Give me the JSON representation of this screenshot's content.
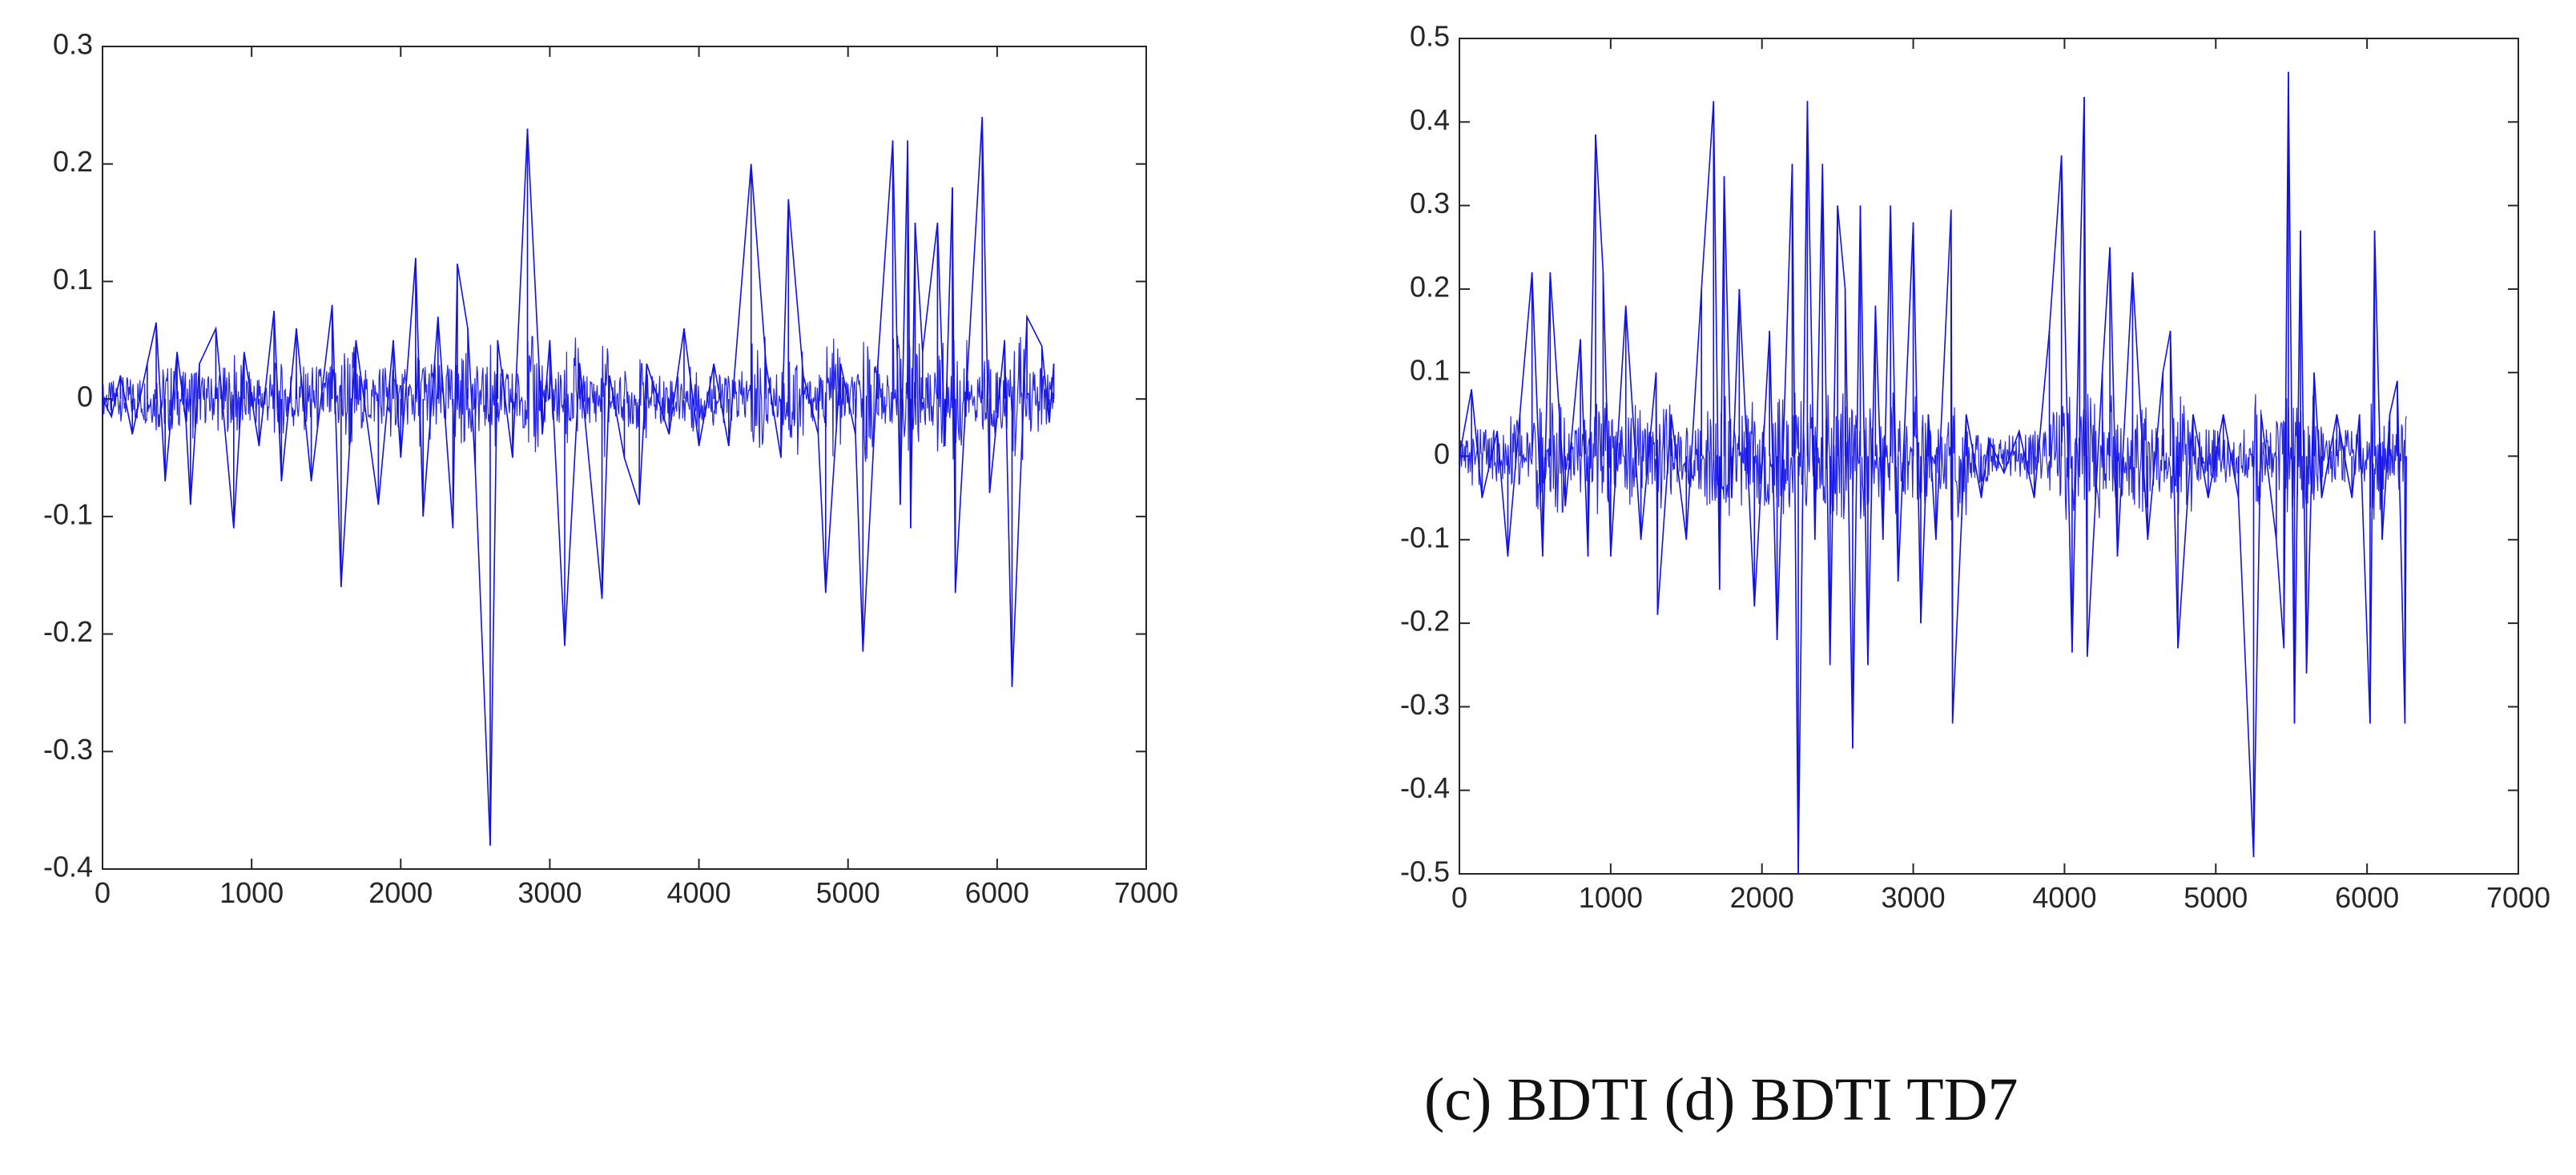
{
  "caption": "(c) BDTI (d) BDTI TD7",
  "colors": {
    "series": "#1010e8",
    "axis": "#262626",
    "background": "#ffffff"
  },
  "chart_data": [
    {
      "type": "line",
      "title": "",
      "xlabel": "",
      "ylabel": "",
      "xlim": [
        0,
        7000
      ],
      "ylim": [
        -0.4,
        0.3
      ],
      "xticks": [
        "0",
        "1000",
        "2000",
        "3000",
        "4000",
        "5000",
        "6000",
        "7000"
      ],
      "yticks": [
        "0.3",
        "0.2",
        "0.1",
        "0",
        "-0.1",
        "-0.2",
        "-0.3",
        "-0.4"
      ],
      "grid": false,
      "series": [
        {
          "points": [
            [
              0,
              0
            ],
            [
              60,
              -0.015
            ],
            [
              120,
              0.02
            ],
            [
              200,
              -0.03
            ],
            [
              300,
              0.03
            ],
            [
              360,
              0.065
            ],
            [
              420,
              -0.07
            ],
            [
              500,
              0.04
            ],
            [
              560,
              -0.02
            ],
            [
              590,
              -0.09
            ],
            [
              650,
              0.03
            ],
            [
              760,
              0.06
            ],
            [
              880,
              -0.11
            ],
            [
              950,
              0.04
            ],
            [
              1050,
              -0.04
            ],
            [
              1150,
              0.075
            ],
            [
              1200,
              -0.07
            ],
            [
              1300,
              0.06
            ],
            [
              1400,
              -0.07
            ],
            [
              1540,
              0.08
            ],
            [
              1600,
              -0.16
            ],
            [
              1700,
              0.05
            ],
            [
              1850,
              -0.09
            ],
            [
              1950,
              0.05
            ],
            [
              2000,
              -0.05
            ],
            [
              2100,
              0.12
            ],
            [
              2150,
              -0.1
            ],
            [
              2250,
              0.07
            ],
            [
              2350,
              -0.11
            ],
            [
              2380,
              0.115
            ],
            [
              2450,
              0.06
            ],
            [
              2500,
              -0.06
            ],
            [
              2600,
              -0.38
            ],
            [
              2650,
              0.05
            ],
            [
              2750,
              -0.05
            ],
            [
              2850,
              0.23
            ],
            [
              2950,
              -0.03
            ],
            [
              3000,
              0.05
            ],
            [
              3100,
              -0.21
            ],
            [
              3200,
              0.03
            ],
            [
              3350,
              -0.17
            ],
            [
              3400,
              0.02
            ],
            [
              3500,
              -0.05
            ],
            [
              3600,
              -0.09
            ],
            [
              3650,
              0.03
            ],
            [
              3800,
              -0.03
            ],
            [
              3900,
              0.06
            ],
            [
              4000,
              -0.04
            ],
            [
              4100,
              0.03
            ],
            [
              4200,
              -0.04
            ],
            [
              4350,
              0.2
            ],
            [
              4450,
              0.03
            ],
            [
              4550,
              -0.05
            ],
            [
              4600,
              0.17
            ],
            [
              4700,
              0.02
            ],
            [
              4800,
              -0.03
            ],
            [
              4850,
              -0.165
            ],
            [
              4950,
              0.03
            ],
            [
              5050,
              -0.03
            ],
            [
              5100,
              -0.215
            ],
            [
              5200,
              0.03
            ],
            [
              5300,
              0.22
            ],
            [
              5350,
              -0.09
            ],
            [
              5400,
              0.22
            ],
            [
              5420,
              -0.11
            ],
            [
              5450,
              0.15
            ],
            [
              5500,
              0.04
            ],
            [
              5600,
              0.15
            ],
            [
              5650,
              -0.04
            ],
            [
              5700,
              0.18
            ],
            [
              5720,
              -0.165
            ],
            [
              5800,
              0.02
            ],
            [
              5900,
              0.24
            ],
            [
              5950,
              -0.08
            ],
            [
              6050,
              0.05
            ],
            [
              6100,
              -0.245
            ],
            [
              6200,
              0.07
            ],
            [
              6300,
              0.045
            ],
            [
              6350,
              -0.02
            ],
            [
              6380,
              0.03
            ]
          ]
        }
      ]
    },
    {
      "type": "line",
      "title": "",
      "xlabel": "",
      "ylabel": "",
      "xlim": [
        0,
        7000
      ],
      "ylim": [
        -0.5,
        0.5
      ],
      "xticks": [
        "0",
        "1000",
        "2000",
        "3000",
        "4000",
        "5000",
        "6000",
        "7000"
      ],
      "yticks": [
        "0.5",
        "0.4",
        "0.3",
        "0.2",
        "0.1",
        "0",
        "-0.1",
        "-0.2",
        "-0.3",
        "-0.4",
        "-0.5"
      ],
      "grid": false,
      "series": [
        {
          "points": [
            [
              0,
              0
            ],
            [
              80,
              0.08
            ],
            [
              150,
              -0.05
            ],
            [
              250,
              0.03
            ],
            [
              320,
              -0.12
            ],
            [
              400,
              0.05
            ],
            [
              480,
              0.22
            ],
            [
              550,
              -0.12
            ],
            [
              600,
              0.22
            ],
            [
              700,
              -0.06
            ],
            [
              800,
              0.14
            ],
            [
              850,
              -0.12
            ],
            [
              900,
              0.385
            ],
            [
              950,
              0.22
            ],
            [
              1000,
              -0.12
            ],
            [
              1100,
              0.18
            ],
            [
              1200,
              -0.1
            ],
            [
              1300,
              0.1
            ],
            [
              1310,
              -0.19
            ],
            [
              1400,
              0.05
            ],
            [
              1500,
              -0.1
            ],
            [
              1600,
              0.2
            ],
            [
              1680,
              0.425
            ],
            [
              1720,
              -0.16
            ],
            [
              1750,
              0.335
            ],
            [
              1800,
              -0.05
            ],
            [
              1850,
              0.2
            ],
            [
              1950,
              -0.18
            ],
            [
              2050,
              0.15
            ],
            [
              2100,
              -0.22
            ],
            [
              2200,
              0.35
            ],
            [
              2240,
              -0.5
            ],
            [
              2300,
              0.425
            ],
            [
              2350,
              -0.1
            ],
            [
              2400,
              0.35
            ],
            [
              2450,
              -0.25
            ],
            [
              2500,
              0.3
            ],
            [
              2550,
              0.2
            ],
            [
              2600,
              -0.35
            ],
            [
              2650,
              0.3
            ],
            [
              2700,
              -0.25
            ],
            [
              2750,
              0.18
            ],
            [
              2800,
              -0.1
            ],
            [
              2850,
              0.3
            ],
            [
              2900,
              -0.15
            ],
            [
              3000,
              0.28
            ],
            [
              3050,
              -0.2
            ],
            [
              3100,
              0.05
            ],
            [
              3150,
              -0.1
            ],
            [
              3250,
              0.295
            ],
            [
              3260,
              -0.32
            ],
            [
              3350,
              0.05
            ],
            [
              3450,
              -0.05
            ],
            [
              3500,
              0.02
            ],
            [
              3600,
              -0.02
            ],
            [
              3700,
              0.03
            ],
            [
              3800,
              -0.05
            ],
            [
              3900,
              0.15
            ],
            [
              3980,
              0.36
            ],
            [
              4050,
              -0.235
            ],
            [
              4100,
              0.2
            ],
            [
              4130,
              0.43
            ],
            [
              4150,
              -0.24
            ],
            [
              4250,
              0.1
            ],
            [
              4300,
              0.25
            ],
            [
              4350,
              -0.12
            ],
            [
              4450,
              0.22
            ],
            [
              4550,
              -0.1
            ],
            [
              4650,
              0.1
            ],
            [
              4700,
              0.15
            ],
            [
              4750,
              -0.23
            ],
            [
              4850,
              0.05
            ],
            [
              4950,
              -0.05
            ],
            [
              5050,
              0.05
            ],
            [
              5150,
              -0.05
            ],
            [
              5250,
              -0.48
            ],
            [
              5300,
              0.05
            ],
            [
              5400,
              -0.1
            ],
            [
              5450,
              -0.23
            ],
            [
              5480,
              0.46
            ],
            [
              5520,
              -0.32
            ],
            [
              5560,
              0.27
            ],
            [
              5600,
              -0.26
            ],
            [
              5650,
              0.1
            ],
            [
              5700,
              -0.05
            ],
            [
              5800,
              0.05
            ],
            [
              5900,
              -0.05
            ],
            [
              5950,
              0.05
            ],
            [
              6020,
              -0.32
            ],
            [
              6050,
              0.27
            ],
            [
              6100,
              -0.1
            ],
            [
              6150,
              0.05
            ],
            [
              6200,
              0.09
            ],
            [
              6250,
              -0.32
            ],
            [
              6260,
              0
            ]
          ]
        }
      ]
    }
  ]
}
